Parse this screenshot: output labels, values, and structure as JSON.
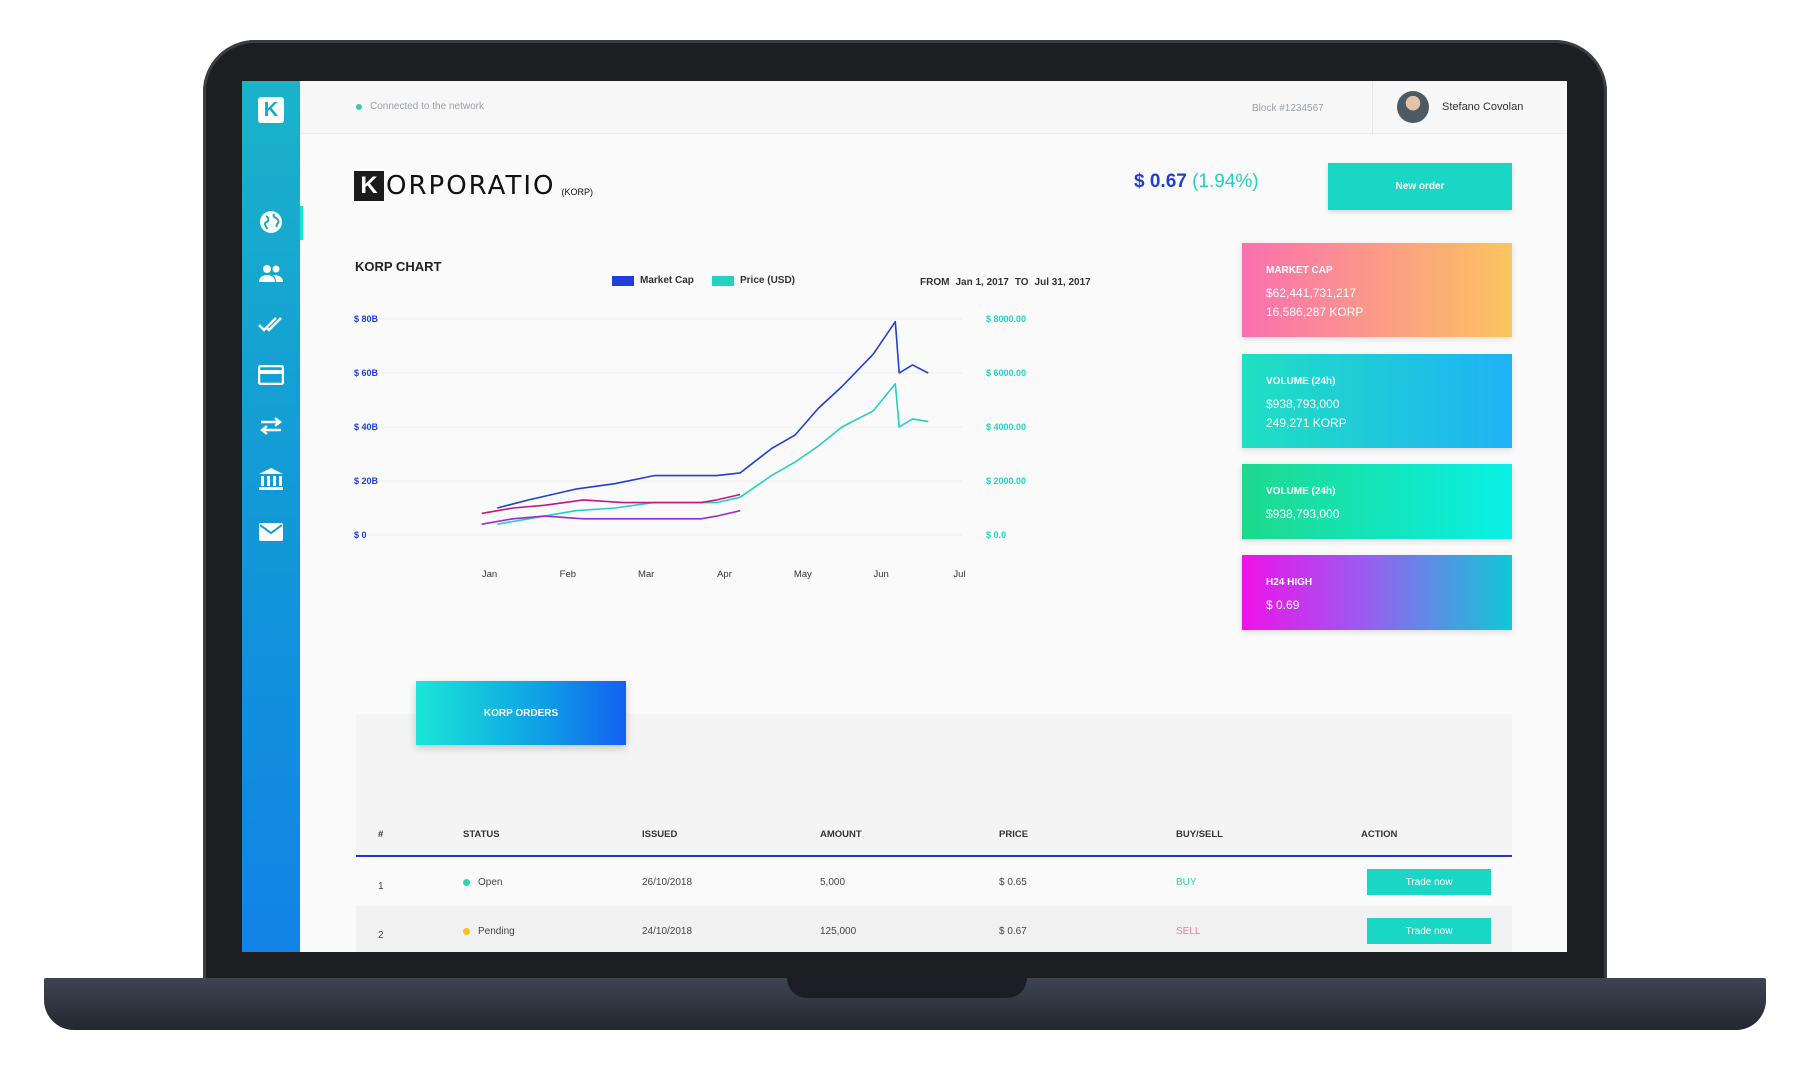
{
  "topbar": {
    "connection_status": "Connected to the network",
    "block": "Block #1234567",
    "user_name": "Stefano Covolan"
  },
  "sidebar": {
    "logo_letter": "K",
    "items": [
      {
        "icon": "globe-icon",
        "active": true
      },
      {
        "icon": "users-icon"
      },
      {
        "icon": "double-check-icon"
      },
      {
        "icon": "credit-card-icon"
      },
      {
        "icon": "transfer-arrows-icon"
      },
      {
        "icon": "bank-icon"
      },
      {
        "icon": "mail-icon"
      }
    ]
  },
  "header": {
    "brand_letter": "K",
    "brand_name": "ORPORATIO",
    "ticker": "(KORP)",
    "price": "$ 0.67",
    "change": "(1.94%)",
    "new_order_label": "New order"
  },
  "chart_header": {
    "title": "KORP CHART",
    "legend_market_cap": "Market Cap",
    "legend_price": "Price (USD)",
    "from_label": "FROM",
    "from_date": "Jan 1, 2017",
    "to_label": "TO",
    "to_date": "Jul 31, 2017"
  },
  "colors": {
    "accent": "#1ad6c4",
    "market_cap_series": "#1f3fd6",
    "price_series": "#22d1c0",
    "magenta_series": "#c2187f",
    "buy": "#2fd39e",
    "sell": "#f07aa5",
    "open_status": "#2fd3b0",
    "pending_status": "#f6c21c"
  },
  "chart_data": {
    "type": "line",
    "x": [
      "Jan",
      "Feb",
      "Mar",
      "Apr",
      "May",
      "Jun",
      "Jul"
    ],
    "y_left_ticks": [
      "$ 0",
      "$ 20B",
      "$ 40B",
      "$ 60B",
      "$ 80B"
    ],
    "y_right_ticks": [
      "$ 0.0",
      "$ 2000.00",
      "$ 4000.00",
      "$ 6000.00",
      "$ 8000.00"
    ],
    "ylim_left": [
      0,
      80
    ],
    "ylim_right": [
      0,
      8000
    ],
    "grid": true,
    "series": [
      {
        "name": "Market Cap",
        "axis": "left",
        "color": "#1f3fd6",
        "values": [
          [
            0.4,
            10
          ],
          [
            0.8,
            13
          ],
          [
            1.4,
            17
          ],
          [
            1.9,
            19
          ],
          [
            2.4,
            22
          ],
          [
            2.8,
            22
          ],
          [
            3.2,
            22
          ],
          [
            3.5,
            23
          ],
          [
            3.9,
            32
          ],
          [
            4.2,
            37
          ],
          [
            4.5,
            47
          ],
          [
            4.8,
            55
          ],
          [
            5.2,
            67
          ],
          [
            5.48,
            79
          ],
          [
            5.53,
            60
          ],
          [
            5.7,
            63
          ],
          [
            5.9,
            60
          ]
        ]
      },
      {
        "name": "Price (USD)",
        "axis": "left",
        "color": "#22d1c0",
        "values": [
          [
            0.4,
            4
          ],
          [
            0.8,
            6
          ],
          [
            1.4,
            9
          ],
          [
            1.9,
            10
          ],
          [
            2.4,
            12
          ],
          [
            2.8,
            12
          ],
          [
            3.2,
            12
          ],
          [
            3.5,
            14
          ],
          [
            3.9,
            22
          ],
          [
            4.2,
            27
          ],
          [
            4.5,
            33
          ],
          [
            4.8,
            40
          ],
          [
            5.2,
            46
          ],
          [
            5.48,
            56
          ],
          [
            5.53,
            40
          ],
          [
            5.7,
            43
          ],
          [
            5.9,
            42
          ]
        ]
      },
      {
        "name": "",
        "axis": "left",
        "color": "#c2187f",
        "values": [
          [
            0.2,
            8
          ],
          [
            0.6,
            10
          ],
          [
            1.0,
            11
          ],
          [
            1.5,
            13
          ],
          [
            2.0,
            12
          ],
          [
            2.5,
            12
          ],
          [
            3.0,
            12
          ],
          [
            3.2,
            13
          ],
          [
            3.5,
            15
          ]
        ]
      },
      {
        "name": "",
        "axis": "left",
        "color": "#9b2bd6",
        "values": [
          [
            0.2,
            4
          ],
          [
            0.6,
            6
          ],
          [
            1.0,
            7
          ],
          [
            1.5,
            6
          ],
          [
            2.0,
            6
          ],
          [
            2.5,
            6
          ],
          [
            3.0,
            6
          ],
          [
            3.2,
            7
          ],
          [
            3.5,
            9
          ]
        ]
      }
    ]
  },
  "cards": [
    {
      "title": "MARKET CAP",
      "line1": "$62,441,731,217",
      "line2": "16,586,287 KORP"
    },
    {
      "title": "VOLUME (24h)",
      "line1": "$938,793,000",
      "line2": "249,271 KORP"
    },
    {
      "title": "VOLUME (24h)",
      "line1": "$938,793,000",
      "line2": ""
    },
    {
      "title": "H24 HIGH",
      "line1": "$ 0.69",
      "line2": ""
    }
  ],
  "orders": {
    "tab_label": "KORP ORDERS",
    "columns": [
      "#",
      "STATUS",
      "ISSUED",
      "AMOUNT",
      "PRICE",
      "BUY/SELL",
      "ACTION"
    ],
    "rows": [
      {
        "num": "1",
        "status": "Open",
        "issued": "26/10/2018",
        "amount": "5,000",
        "price": "$ 0.65",
        "side": "BUY",
        "action": "Trade now"
      },
      {
        "num": "2",
        "status": "Pending",
        "issued": "24/10/2018",
        "amount": "125,000",
        "price": "$ 0.67",
        "side": "SELL",
        "action": "Trade now"
      }
    ]
  }
}
